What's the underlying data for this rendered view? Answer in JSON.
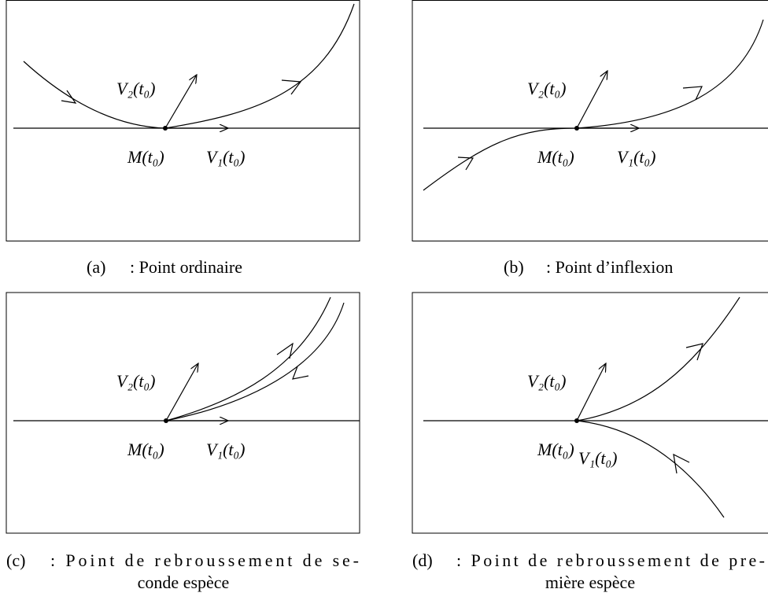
{
  "panels": [
    {
      "tag": "(a)",
      "caption": [
        ": Point ordinaire"
      ],
      "v2": "V₂(t₀)",
      "m": "M(t₀)",
      "v1": "V₁(t₀)"
    },
    {
      "tag": "(b)",
      "caption": [
        ": Point d’inflexion"
      ],
      "v2": "V₂(t₀)",
      "m": "M(t₀)",
      "v1": "V₁(t₀)"
    },
    {
      "tag": "(c)",
      "caption": [
        ": Point de rebroussement de se-",
        "conde espèce"
      ],
      "v2": "V₂(t₀)",
      "m": "M(t₀)",
      "v1": "V₁(t₀)"
    },
    {
      "tag": "(d)",
      "caption": [
        ": Point de rebroussement de pre-",
        "mière espèce"
      ],
      "v2": "V₂(t₀)",
      "m": "M(t₀)",
      "v1": "V₁(t₀)"
    }
  ]
}
